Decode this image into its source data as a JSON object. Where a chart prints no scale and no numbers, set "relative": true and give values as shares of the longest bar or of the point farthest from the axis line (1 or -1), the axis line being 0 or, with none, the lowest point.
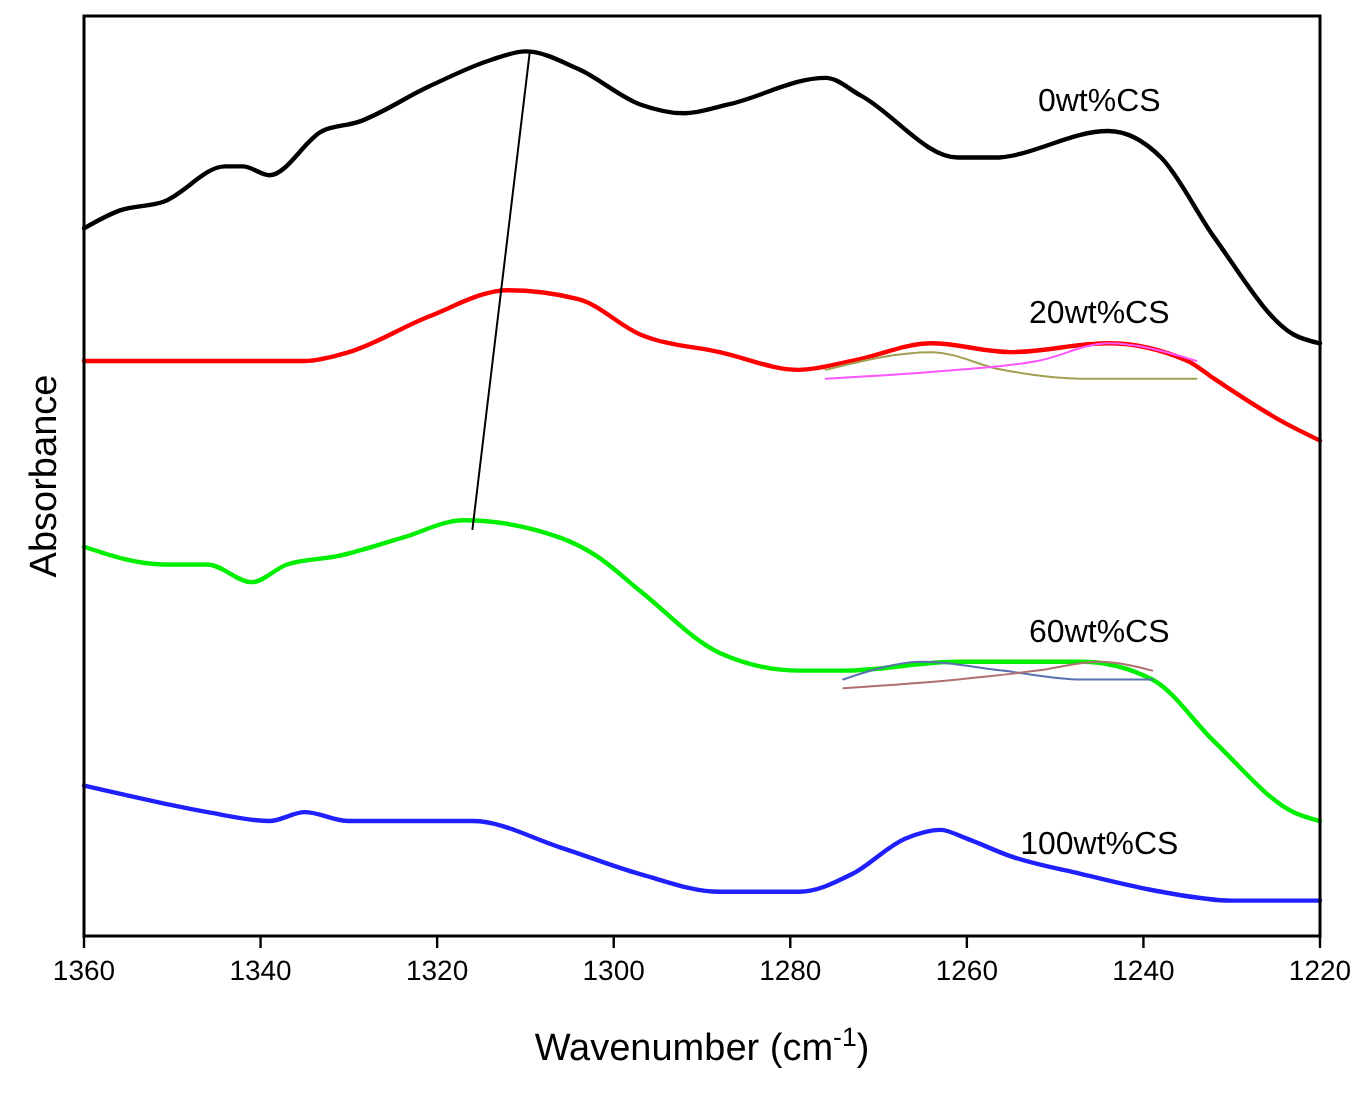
{
  "chart_data": {
    "type": "line",
    "relative": true,
    "xlabel": "Wavenumber (cm$^{-1}$)",
    "ylabel": "Absorbance",
    "xlim": [
      1360,
      1220
    ],
    "xticks": [
      1360,
      1340,
      1320,
      1300,
      1280,
      1260,
      1240,
      1220
    ],
    "grid": false,
    "marker": "none",
    "line_style": "solid",
    "series": [
      {
        "name": "0wt%CS",
        "color": "#000000",
        "x": [
          1360,
          1356,
          1351,
          1344,
          1342,
          1339,
          1333,
          1329,
          1321,
          1314,
          1310,
          1304,
          1297,
          1292,
          1287,
          1276,
          1272,
          1261,
          1257,
          1244,
          1238,
          1232,
          1223,
          1220
        ],
        "values": [
          0.8,
          0.82,
          0.83,
          0.87,
          0.87,
          0.86,
          0.91,
          0.92,
          0.96,
          0.99,
          1.0,
          0.98,
          0.94,
          0.93,
          0.94,
          0.97,
          0.95,
          0.88,
          0.88,
          0.91,
          0.88,
          0.79,
          0.68,
          0.67
        ]
      },
      {
        "name": "20wt%CS",
        "color": "#ff0000",
        "x": [
          1360,
          1351,
          1345,
          1340,
          1335,
          1330,
          1321,
          1312,
          1304,
          1297,
          1288,
          1279,
          1273,
          1264,
          1255,
          1244,
          1235,
          1232,
          1224,
          1220
        ],
        "values": [
          0.65,
          0.65,
          0.65,
          0.65,
          0.65,
          0.66,
          0.7,
          0.73,
          0.72,
          0.68,
          0.66,
          0.64,
          0.65,
          0.67,
          0.66,
          0.67,
          0.65,
          0.63,
          0.58,
          0.56
        ]
      },
      {
        "color": "#a0a050",
        "x": [
          1276,
          1264,
          1256,
          1247,
          1234
        ],
        "values": [
          0.64,
          0.66,
          0.64,
          0.63,
          0.63
        ]
      },
      {
        "color": "#ff55ff",
        "x": [
          1276,
          1261,
          1252,
          1244,
          1234
        ],
        "values": [
          0.63,
          0.64,
          0.65,
          0.67,
          0.65
        ]
      },
      {
        "name": "60wt%CS",
        "color": "#00ee00",
        "x": [
          1360,
          1351,
          1346,
          1341,
          1337,
          1331,
          1324,
          1317,
          1306,
          1302,
          1297,
          1288,
          1279,
          1274,
          1261,
          1247,
          1239,
          1232,
          1223,
          1220
        ],
        "values": [
          0.44,
          0.42,
          0.42,
          0.4,
          0.42,
          0.43,
          0.45,
          0.47,
          0.45,
          0.43,
          0.39,
          0.32,
          0.3,
          0.3,
          0.31,
          0.31,
          0.29,
          0.22,
          0.14,
          0.13
        ]
      },
      {
        "color": "#5a70b0",
        "x": [
          1274,
          1265,
          1256,
          1247,
          1239
        ],
        "values": [
          0.29,
          0.31,
          0.3,
          0.29,
          0.29
        ]
      },
      {
        "color": "#b07070",
        "x": [
          1274,
          1261,
          1252,
          1245,
          1239
        ],
        "values": [
          0.28,
          0.29,
          0.3,
          0.31,
          0.3
        ]
      },
      {
        "name": "100wt%CS",
        "color": "#2020ff",
        "x": [
          1360,
          1351,
          1346,
          1339,
          1335,
          1330,
          1322,
          1316,
          1306,
          1297,
          1288,
          1279,
          1273,
          1267,
          1263,
          1260,
          1255,
          1247,
          1238,
          1230,
          1223,
          1220
        ],
        "values": [
          0.17,
          0.15,
          0.14,
          0.13,
          0.14,
          0.13,
          0.13,
          0.13,
          0.1,
          0.07,
          0.05,
          0.05,
          0.07,
          0.11,
          0.12,
          0.11,
          0.09,
          0.07,
          0.05,
          0.04,
          0.04,
          0.04
        ]
      },
      {
        "color": "#000000",
        "x": [
          1309.5,
          1316
        ],
        "values": [
          1.0,
          0.46
        ]
      }
    ]
  }
}
